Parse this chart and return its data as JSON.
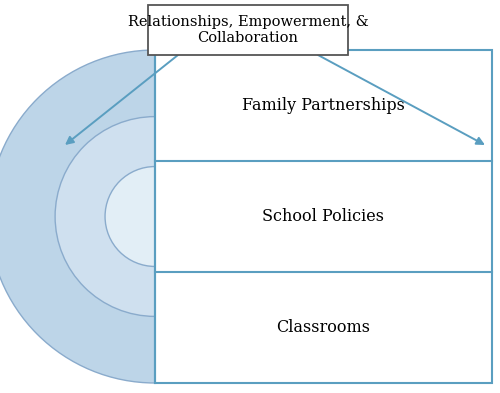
{
  "title_box_text": "Relationships, Empowerment, &\nCollaboration",
  "section_labels": [
    "Family Partnerships",
    "School Policies",
    "Classrooms"
  ],
  "arrow_color": "#5a9ec0",
  "rect_border_color": "#5a9ec0",
  "semicircle_fills": [
    "#bdd5e8",
    "#cfe0ef",
    "#e2eef6"
  ],
  "semicircle_edge_color": "#8aabcc",
  "bg_color": "#ffffff",
  "label_fontsize": 11.5,
  "title_fontsize": 10.5,
  "box_edge_color": "#555555"
}
